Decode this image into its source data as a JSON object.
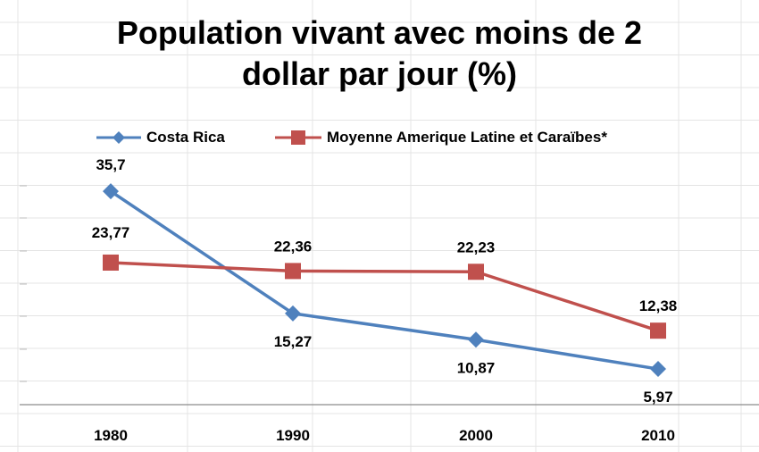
{
  "chart_data": {
    "type": "line",
    "title": [
      "Population vivant avec moins de 2",
      "dollar par jour (%)"
    ],
    "categories": [
      "1980",
      "1990",
      "2000",
      "2010"
    ],
    "series": [
      {
        "name": "Costa Rica",
        "color": "#4F81BD",
        "marker": "diamond",
        "values": [
          35.7,
          15.27,
          10.87,
          5.97
        ],
        "labels": [
          "35,7",
          "15,27",
          "10,87",
          "5,97"
        ],
        "label_position": [
          "above",
          "below",
          "below",
          "below"
        ]
      },
      {
        "name": "Moyenne Amerique Latine et Caraïbes*",
        "color": "#C0504D",
        "marker": "square",
        "values": [
          23.77,
          22.36,
          22.23,
          12.38
        ],
        "labels": [
          "23,77",
          "22,36",
          "22,23",
          "12,38"
        ],
        "label_position": [
          "above",
          "above",
          "above",
          "above"
        ]
      }
    ],
    "ylim": [
      0,
      42
    ],
    "xlabel": "",
    "ylabel": "",
    "legend_position": "top"
  }
}
